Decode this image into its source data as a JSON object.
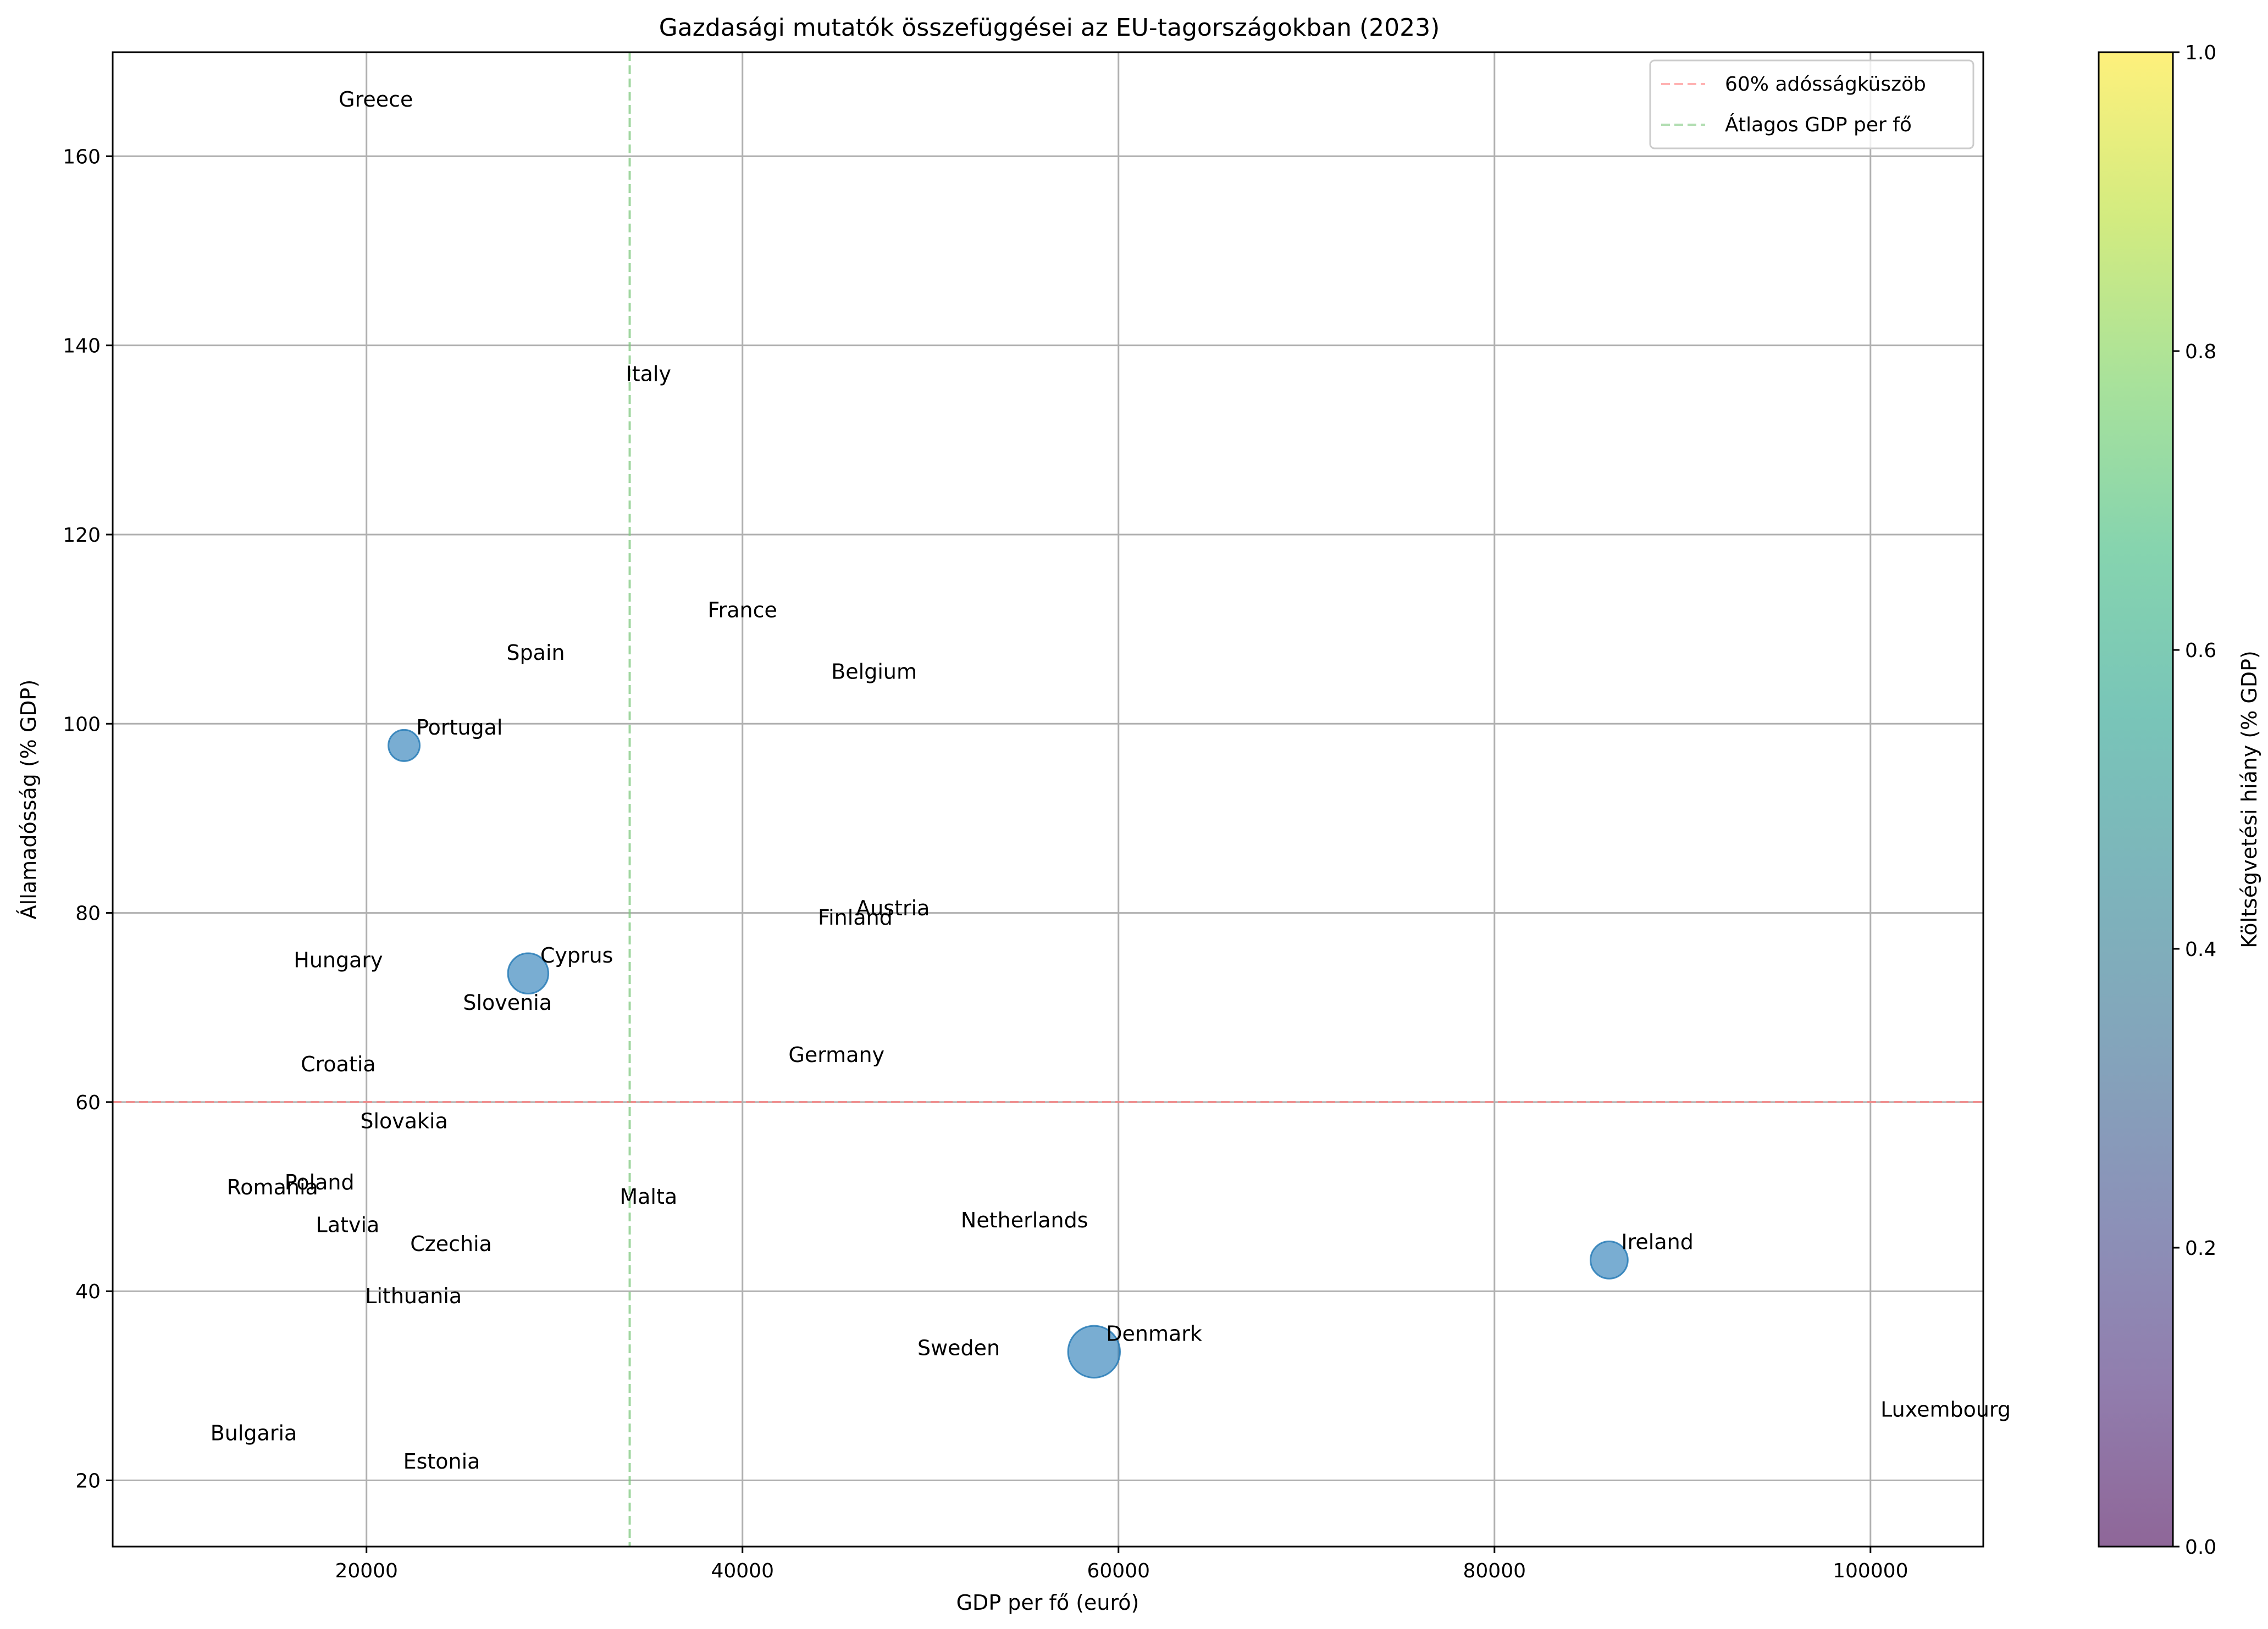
{
  "chart_data": {
    "type": "scatter",
    "title": "Gazdasági mutatók összefüggései az EU-tagországokban (2023)",
    "xlabel": "GDP per fő (euró)",
    "ylabel": "Államadósság (% GDP)",
    "xlim": [
      6500,
      106000
    ],
    "ylim": [
      13,
      171
    ],
    "xticks": [
      20000,
      40000,
      60000,
      80000,
      100000
    ],
    "yticks": [
      20,
      40,
      60,
      80,
      100,
      120,
      140,
      160
    ],
    "grid": true,
    "point_color": "#1f77b4",
    "point_opacity": 0.6,
    "points": [
      {
        "label": "Greece",
        "x": 20500,
        "y": 166,
        "deficit": 0
      },
      {
        "label": "Italy",
        "x": 35000,
        "y": 137,
        "deficit": 0
      },
      {
        "label": "France",
        "x": 40000,
        "y": 112,
        "deficit": 0
      },
      {
        "label": "Spain",
        "x": 29000,
        "y": 107.5,
        "deficit": 0
      },
      {
        "label": "Belgium",
        "x": 47000,
        "y": 105.5,
        "deficit": 0
      },
      {
        "label": "Portugal",
        "x": 22000,
        "y": 97.7,
        "deficit": 1.2
      },
      {
        "label": "Austria",
        "x": 48000,
        "y": 80.5,
        "deficit": 0
      },
      {
        "label": "Finland",
        "x": 46000,
        "y": 79.5,
        "deficit": 0
      },
      {
        "label": "Hungary",
        "x": 18500,
        "y": 75,
        "deficit": 0
      },
      {
        "label": "Cyprus",
        "x": 28600,
        "y": 73.6,
        "deficit": 2.0
      },
      {
        "label": "Slovenia",
        "x": 27500,
        "y": 70.5,
        "deficit": 0
      },
      {
        "label": "Germany",
        "x": 45000,
        "y": 65,
        "deficit": 0
      },
      {
        "label": "Croatia",
        "x": 18500,
        "y": 64,
        "deficit": 0
      },
      {
        "label": "Slovakia",
        "x": 22000,
        "y": 58,
        "deficit": 0
      },
      {
        "label": "Poland",
        "x": 17500,
        "y": 51.5,
        "deficit": 0
      },
      {
        "label": "Romania",
        "x": 15000,
        "y": 51,
        "deficit": 0
      },
      {
        "label": "Malta",
        "x": 35000,
        "y": 50,
        "deficit": 0
      },
      {
        "label": "Netherlands",
        "x": 55000,
        "y": 47.5,
        "deficit": 0
      },
      {
        "label": "Latvia",
        "x": 19000,
        "y": 47,
        "deficit": 0
      },
      {
        "label": "Czechia",
        "x": 24500,
        "y": 45,
        "deficit": 0
      },
      {
        "label": "Ireland",
        "x": 86100,
        "y": 43.3,
        "deficit": 1.7
      },
      {
        "label": "Lithuania",
        "x": 22500,
        "y": 39.5,
        "deficit": 0
      },
      {
        "label": "Denmark",
        "x": 58700,
        "y": 33.6,
        "deficit": 3.3
      },
      {
        "label": "Sweden",
        "x": 51500,
        "y": 34,
        "deficit": 0
      },
      {
        "label": "Luxembourg",
        "x": 104000,
        "y": 27.5,
        "deficit": 0
      },
      {
        "label": "Bulgaria",
        "x": 14000,
        "y": 25,
        "deficit": 0
      },
      {
        "label": "Estonia",
        "x": 24000,
        "y": 22,
        "deficit": 0
      }
    ],
    "reference_lines": [
      {
        "label": "60% adósságküszöb",
        "orientation": "horizontal",
        "value": 60,
        "color": "#ff7f7f"
      },
      {
        "label": "Átlagos GDP per fő",
        "orientation": "vertical",
        "value": 34000,
        "color": "#7fc97f"
      }
    ],
    "legend_position": "top-right",
    "colorbar": {
      "label": "Költségvetési hiány (% GDP)",
      "range": [
        0.0,
        1.0
      ],
      "ticks": [
        "0.0",
        "0.2",
        "0.4",
        "0.6",
        "0.8",
        "1.0"
      ],
      "colormap": [
        "#440154",
        "#482878",
        "#3e4989",
        "#31688e",
        "#26828e",
        "#1f9e89",
        "#35b779",
        "#6ece58",
        "#b5de2b",
        "#fde725"
      ]
    }
  }
}
